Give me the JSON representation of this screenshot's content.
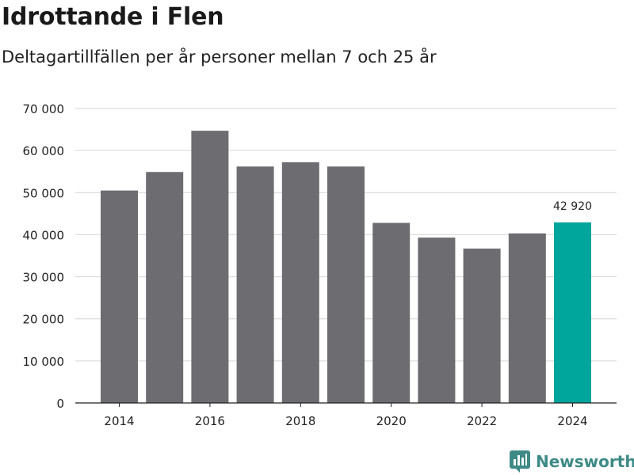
{
  "header": {
    "title": "Idrottande i Flen",
    "subtitle": "Deltagartillfällen per år personer mellan 7 och 25 år"
  },
  "brand": {
    "name": "Newsworthy"
  },
  "chart_data": {
    "type": "bar",
    "title": "Idrottande i Flen",
    "subtitle": "Deltagartillfällen per år personer mellan 7 och 25 år",
    "xlabel": "",
    "ylabel": "",
    "categories": [
      "2014",
      "2015",
      "2016",
      "2017",
      "2018",
      "2019",
      "2020",
      "2021",
      "2022",
      "2023",
      "2024"
    ],
    "values": [
      50500,
      54900,
      64700,
      56200,
      57200,
      56200,
      42800,
      39300,
      36700,
      40300,
      42920
    ],
    "ylim": [
      0,
      70000
    ],
    "yticks": [
      0,
      10000,
      20000,
      30000,
      40000,
      50000,
      60000,
      70000
    ],
    "ytick_labels": [
      "0",
      "10 000",
      "20 000",
      "30 000",
      "40 000",
      "50 000",
      "60 000",
      "70 000"
    ],
    "xtick_labels": [
      "2014",
      "",
      "2016",
      "",
      "2018",
      "",
      "2020",
      "",
      "2022",
      "",
      "2024"
    ],
    "bar_color": "#6d6c71",
    "highlight_color": "#00a59b",
    "highlight_index": 10,
    "highlight_label": "42 920",
    "grid": true,
    "legend": false
  }
}
